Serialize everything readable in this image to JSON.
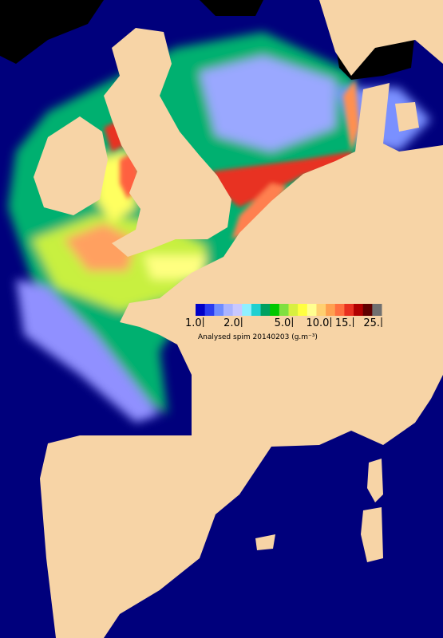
{
  "legend": {
    "title": "Analysed spim 20140203 (g.m⁻³)",
    "colors": [
      "#0000c8",
      "#2a3cf0",
      "#6f8cff",
      "#aab4ff",
      "#c8c8ff",
      "#8ff0ff",
      "#20d0d0",
      "#00a060",
      "#00c800",
      "#80e040",
      "#d8f040",
      "#ffff40",
      "#ffff90",
      "#ffd070",
      "#ffa050",
      "#ff7040",
      "#e83020",
      "#b00000",
      "#600000",
      "#707070"
    ],
    "scale": "log",
    "lim": [
      0.87,
      25
    ],
    "ticks": [
      {
        "value": 1,
        "label": "1.0"
      },
      {
        "value": 2,
        "label": "2.0"
      },
      {
        "value": 5,
        "label": "5.0"
      },
      {
        "value": 10,
        "label": "10.0"
      },
      {
        "value": 15,
        "label": "15."
      },
      {
        "value": 25,
        "label": "25."
      }
    ]
  }
}
